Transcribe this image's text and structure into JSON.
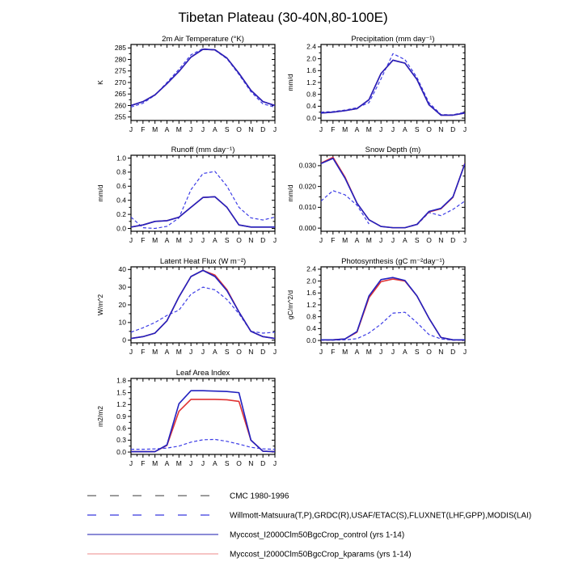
{
  "page_title": "Tibetan Plateau (30-40N,80-100E)",
  "months": [
    "J",
    "F",
    "M",
    "A",
    "M",
    "J",
    "J",
    "A",
    "S",
    "O",
    "N",
    "D",
    "J"
  ],
  "legend": [
    {
      "id": "cmc",
      "label": "CMC 1980-1996",
      "color": "#9c9c9c",
      "dashed": true,
      "width": 2
    },
    {
      "id": "obs",
      "label": "Willmott-Matsuura(T,P),GRDC(R),USAF/ETAC(S),FLUXNET(LHF,GPP),MODIS(LAI)",
      "color": "#7070e8",
      "dashed": true,
      "width": 1.7
    },
    {
      "id": "control",
      "label": "Myccost_I2000Clm50BgcCrop_control (yrs 1-14)",
      "color": "#4646bd",
      "dashed": false,
      "width": 1.3
    },
    {
      "id": "kparams",
      "label": "Myccost_I2000Clm50BgcCrop_kparams (yrs 1-14)",
      "color": "#f0a0a0",
      "dashed": false,
      "width": 1.3
    }
  ],
  "chart_data": [
    {
      "id": "air-temperature",
      "type": "line",
      "title": "2m Air Temperature (°K)",
      "ylabel": "K",
      "ylim": [
        253.5,
        286.5
      ],
      "yticks": [
        255,
        260,
        265,
        270,
        275,
        280,
        285
      ],
      "ytick_labels": [
        "255",
        "260",
        "265",
        "270",
        "275",
        "280",
        "285"
      ],
      "series": [
        {
          "name": "obs",
          "color": "#3c3ce6",
          "dashed": true,
          "values": [
            259.3,
            261,
            264.5,
            270,
            275.7,
            282,
            284.7,
            284,
            280.3,
            273.5,
            266,
            260.7,
            259.3
          ]
        },
        {
          "name": "kparams",
          "color": "#e03232",
          "dashed": false,
          "values": [
            260,
            261.7,
            264.6,
            269.5,
            274.8,
            281,
            284.4,
            284.2,
            280.6,
            274,
            266.6,
            261.7,
            260
          ]
        },
        {
          "name": "control",
          "color": "#2222c0",
          "dashed": false,
          "values": [
            260,
            261.7,
            264.6,
            269.5,
            274.8,
            281,
            284.4,
            284.2,
            280.6,
            274,
            266.6,
            261.7,
            260
          ]
        }
      ]
    },
    {
      "id": "precipitation",
      "type": "line",
      "title": "Precipitation (mm day⁻¹)",
      "ylabel": "mm/d",
      "ylim": [
        -0.08,
        2.48
      ],
      "yticks": [
        0,
        0.4,
        0.8,
        1.2,
        1.6,
        2.0,
        2.4
      ],
      "ytick_labels": [
        "0.0",
        "0.4",
        "0.8",
        "1.2",
        "1.6",
        "2.0",
        "2.4"
      ],
      "series": [
        {
          "name": "obs",
          "color": "#3c3ce6",
          "dashed": true,
          "values": [
            0.2,
            0.22,
            0.27,
            0.35,
            0.52,
            1.32,
            2.17,
            1.97,
            1.37,
            0.52,
            0.12,
            0.11,
            0.2
          ]
        },
        {
          "name": "kparams",
          "color": "#e03232",
          "dashed": false,
          "values": [
            0.17,
            0.2,
            0.25,
            0.32,
            0.62,
            1.5,
            1.95,
            1.85,
            1.3,
            0.45,
            0.1,
            0.1,
            0.17
          ]
        },
        {
          "name": "control",
          "color": "#2222c0",
          "dashed": false,
          "values": [
            0.17,
            0.2,
            0.25,
            0.32,
            0.62,
            1.5,
            1.95,
            1.85,
            1.3,
            0.45,
            0.1,
            0.1,
            0.17
          ]
        }
      ]
    },
    {
      "id": "runoff",
      "type": "line",
      "title": "Runoff (mm day⁻¹)",
      "ylabel": "mm/d",
      "ylim": [
        -0.04,
        1.04
      ],
      "yticks": [
        0,
        0.2,
        0.4,
        0.6,
        0.8,
        1.0
      ],
      "ytick_labels": [
        "0.0",
        "0.2",
        "0.4",
        "0.6",
        "0.8",
        "1.0"
      ],
      "series": [
        {
          "name": "obs",
          "color": "#3c3ce6",
          "dashed": true,
          "values": [
            0.16,
            0.01,
            0.0,
            0.03,
            0.15,
            0.55,
            0.78,
            0.81,
            0.6,
            0.3,
            0.15,
            0.12,
            0.16
          ]
        },
        {
          "name": "kparams",
          "color": "#e03232",
          "dashed": false,
          "values": [
            0.02,
            0.05,
            0.1,
            0.11,
            0.16,
            0.3,
            0.44,
            0.45,
            0.3,
            0.05,
            0.02,
            0.02,
            0.02
          ]
        },
        {
          "name": "control",
          "color": "#2222c0",
          "dashed": false,
          "values": [
            0.02,
            0.05,
            0.1,
            0.11,
            0.16,
            0.3,
            0.44,
            0.45,
            0.3,
            0.05,
            0.02,
            0.02,
            0.02
          ]
        }
      ]
    },
    {
      "id": "snow-depth",
      "type": "line",
      "title": "Snow Depth (m)",
      "ylabel": "mm/d",
      "ylim": [
        -0.0015,
        0.035
      ],
      "yticks": [
        0,
        0.01,
        0.02,
        0.03
      ],
      "ytick_labels": [
        "0.000",
        "0.010",
        "0.020",
        "0.030"
      ],
      "series": [
        {
          "name": "obs",
          "color": "#3c3ce6",
          "dashed": true,
          "values": [
            0.013,
            0.018,
            0.016,
            0.011,
            0.002,
            null,
            null,
            null,
            0.0015,
            0.0075,
            0.006,
            0.009,
            0.013
          ]
        },
        {
          "name": "kparams",
          "color": "#e03232",
          "dashed": false,
          "values": [
            0.0312,
            0.034,
            0.0245,
            0.012,
            0.004,
            0.0008,
            0.0002,
            0.0002,
            0.0018,
            0.0078,
            0.0093,
            0.0148,
            0.0312
          ]
        },
        {
          "name": "control",
          "color": "#2222c0",
          "dashed": false,
          "values": [
            0.031,
            0.0335,
            0.024,
            0.012,
            0.004,
            0.0008,
            0.0002,
            0.0002,
            0.0018,
            0.008,
            0.0095,
            0.015,
            0.031
          ]
        }
      ]
    },
    {
      "id": "latent-heat-flux",
      "type": "line",
      "title": "Latent Heat Flux (W m⁻²)",
      "ylabel": "W/m^2",
      "ylim": [
        -1.5,
        41.5
      ],
      "yticks": [
        0,
        10,
        20,
        30,
        40
      ],
      "ytick_labels": [
        "0",
        "10",
        "20",
        "30",
        "40"
      ],
      "series": [
        {
          "name": "obs",
          "color": "#3c3ce6",
          "dashed": true,
          "values": [
            4.5,
            7,
            10,
            14,
            17,
            26,
            30,
            28.5,
            23,
            15,
            5,
            4,
            4.5
          ]
        },
        {
          "name": "kparams",
          "color": "#e03232",
          "dashed": false,
          "values": [
            1,
            2,
            4,
            11,
            24.5,
            36,
            39.5,
            36.8,
            28.6,
            16,
            5,
            2,
            1
          ]
        },
        {
          "name": "control",
          "color": "#2222c0",
          "dashed": false,
          "values": [
            1,
            2,
            4,
            11,
            24.5,
            36,
            39.5,
            36,
            28,
            16,
            5,
            2,
            1
          ]
        }
      ]
    },
    {
      "id": "photosynthesis",
      "type": "line",
      "title": "Photosynthesis (gC m⁻²day⁻¹)",
      "ylabel": "gC/m^2/d",
      "ylim": [
        -0.08,
        2.48
      ],
      "yticks": [
        0,
        0.4,
        0.8,
        1.2,
        1.6,
        2.0,
        2.4
      ],
      "ytick_labels": [
        "0.0",
        "0.4",
        "0.8",
        "1.2",
        "1.6",
        "2.0",
        "2.4"
      ],
      "series": [
        {
          "name": "obs",
          "color": "#3c3ce6",
          "dashed": true,
          "values": [
            0.01,
            0.01,
            0.02,
            0.06,
            0.25,
            0.55,
            0.92,
            0.95,
            0.6,
            0.2,
            0.05,
            0.01,
            0.01
          ]
        },
        {
          "name": "kparams",
          "color": "#e03232",
          "dashed": false,
          "values": [
            0.02,
            0.02,
            0.05,
            0.28,
            1.44,
            1.98,
            2.07,
            2.0,
            1.5,
            0.75,
            0.1,
            0.02,
            0.02
          ]
        },
        {
          "name": "control",
          "color": "#2222c0",
          "dashed": false,
          "values": [
            0.02,
            0.02,
            0.05,
            0.3,
            1.5,
            2.05,
            2.12,
            2.02,
            1.5,
            0.75,
            0.1,
            0.02,
            0.02
          ]
        }
      ]
    },
    {
      "id": "leaf-area-index",
      "type": "line",
      "title": "Leaf Area Index",
      "ylabel": "m2/m2",
      "ylim": [
        -0.06,
        1.86
      ],
      "yticks": [
        0,
        0.3,
        0.6,
        0.9,
        1.2,
        1.5,
        1.8
      ],
      "ytick_labels": [
        "0.0",
        "0.3",
        "0.6",
        "0.9",
        "1.2",
        "1.5",
        "1.8"
      ],
      "series": [
        {
          "name": "obs",
          "color": "#3c3ce6",
          "dashed": true,
          "values": [
            0.07,
            0.07,
            0.08,
            0.1,
            0.15,
            0.25,
            0.31,
            0.32,
            0.27,
            0.2,
            0.12,
            0.08,
            0.07
          ]
        },
        {
          "name": "kparams",
          "color": "#e03232",
          "dashed": false,
          "values": [
            0.01,
            0.01,
            0.01,
            0.17,
            1.03,
            1.33,
            1.33,
            1.33,
            1.32,
            1.28,
            0.3,
            0.02,
            0.01
          ]
        },
        {
          "name": "control",
          "color": "#2222c0",
          "dashed": false,
          "values": [
            0.01,
            0.01,
            0.01,
            0.18,
            1.22,
            1.55,
            1.55,
            1.54,
            1.53,
            1.5,
            0.3,
            0.02,
            0.01
          ]
        }
      ]
    }
  ]
}
